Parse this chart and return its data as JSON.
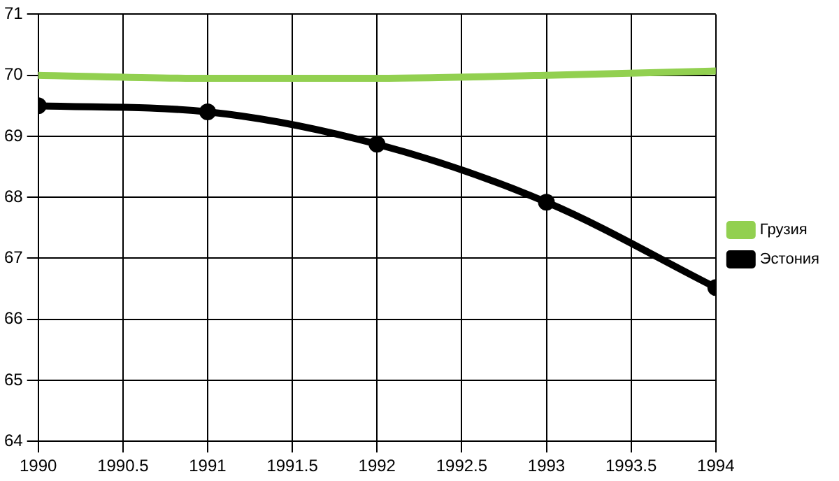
{
  "chart_data": {
    "type": "line",
    "x": [
      1990,
      1991,
      1992,
      1993,
      1994
    ],
    "series": [
      {
        "name": "Грузия",
        "color": "#92d050",
        "values": [
          70.0,
          69.95,
          69.95,
          70.0,
          70.07
        ],
        "marker": "none"
      },
      {
        "name": "Эстония",
        "color": "#000000",
        "values": [
          69.5,
          69.4,
          68.87,
          67.92,
          66.52
        ],
        "marker": "circle"
      }
    ],
    "xlim": [
      1990,
      1994
    ],
    "xticks": [
      1990,
      1990.5,
      1991,
      1991.5,
      1992,
      1992.5,
      1993,
      1993.5,
      1994
    ],
    "ylim": [
      64,
      71
    ],
    "yticks": [
      64,
      65,
      66,
      67,
      68,
      69,
      70,
      71
    ],
    "grid": true,
    "legend": "right"
  }
}
